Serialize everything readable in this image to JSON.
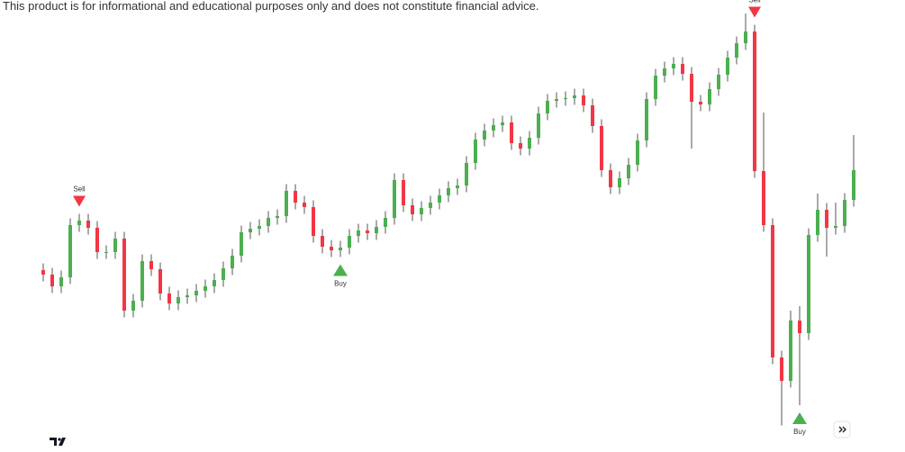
{
  "disclaimer": "This product is for informational and educational purposes only and does not constitute financial advice.",
  "chart_data": {
    "type": "candlestick",
    "ylim": [
      0,
      100
    ],
    "up_color": "#4caf50",
    "down_color": "#f23645",
    "wick_color": "#555555",
    "open": [
      40,
      39,
      36.4,
      38.4,
      50,
      51,
      49.4,
      44,
      44,
      47,
      31,
      33.2,
      42,
      40.2,
      34.8,
      32.6,
      34,
      34.4,
      35.4,
      36.4,
      37.8,
      40.4,
      43.2,
      48.4,
      49.2,
      49.8,
      51.6,
      52,
      57.6,
      55,
      54,
      47.6,
      45.2,
      44.4,
      45,
      47.6,
      48.8,
      48.2,
      49.6,
      51.6,
      60,
      54.4,
      52.4,
      53.8,
      55,
      56.6,
      58.2,
      58.8,
      63.8,
      69,
      71,
      72.2,
      72.8,
      68.2,
      67,
      69.4,
      74.8,
      77.6,
      78,
      78.2,
      78.8,
      76.6,
      72,
      62.2,
      58.4,
      60.4,
      63.4,
      68.8,
      78,
      83.2,
      84.8,
      85.8,
      83.6,
      77.4,
      76.8,
      80.2,
      83.4,
      87.2,
      90.4,
      93,
      62,
      50,
      20.6,
      15.4,
      28.8,
      26,
      47.8,
      53.4,
      49.4,
      49.8,
      55.6
    ],
    "high": [
      41.5,
      40.5,
      39.9,
      51.5,
      52.5,
      52.5,
      50.9,
      45.5,
      48.5,
      48.5,
      34.7,
      43.5,
      43.5,
      41.7,
      36.3,
      35.5,
      35.9,
      36.9,
      37.9,
      39.3,
      41.9,
      44.7,
      49.9,
      50.7,
      51.3,
      53.1,
      53.5,
      59.1,
      59.1,
      56.5,
      55.5,
      49.1,
      46.7,
      46.5,
      49.1,
      50.3,
      50.3,
      51.1,
      53.1,
      61.5,
      61.5,
      55.9,
      55.3,
      56.5,
      58.1,
      59.7,
      60.3,
      65.3,
      70.5,
      72.5,
      73.7,
      74.3,
      74.3,
      69.7,
      70.9,
      76.3,
      79.1,
      79.5,
      79.7,
      80.3,
      80.3,
      78.1,
      73.5,
      63.7,
      61.9,
      64.9,
      70.3,
      79.5,
      84.7,
      86.3,
      87.3,
      87.3,
      85.1,
      78.9,
      81.7,
      84.9,
      88.7,
      91.9,
      97,
      94.5,
      75,
      51.5,
      22.1,
      31,
      32,
      49.3,
      57,
      54.9,
      55,
      57.1,
      70
    ],
    "low": [
      37.5,
      34.9,
      34.9,
      36.9,
      48.5,
      47.9,
      42.5,
      42.5,
      42.5,
      29.5,
      29.5,
      31.7,
      38.7,
      33.3,
      31.1,
      31.1,
      32.5,
      32.9,
      33.9,
      34.9,
      36.3,
      38.9,
      41.7,
      46.9,
      47.7,
      48.3,
      50.1,
      50.5,
      53.5,
      52.5,
      46.1,
      43.7,
      42.9,
      42.9,
      43.5,
      46.1,
      46.7,
      46.7,
      48.1,
      50.1,
      52.9,
      50.9,
      50.9,
      52.3,
      53.5,
      55.1,
      56.7,
      57.3,
      62.3,
      67.5,
      69.5,
      70.7,
      66.7,
      65.5,
      65.5,
      67.9,
      73.3,
      76.1,
      76.5,
      76.7,
      75.1,
      70.5,
      60.7,
      56.9,
      56.9,
      58.9,
      61.9,
      67.3,
      76.5,
      81.7,
      83.3,
      82.1,
      67,
      75.3,
      75.3,
      78.7,
      81.9,
      85.7,
      88.9,
      60.5,
      48.5,
      19.1,
      5.5,
      13.9,
      10,
      24.5,
      46.3,
      43,
      47.9,
      48.3,
      54.1
    ],
    "close": [
      39,
      36.4,
      38.4,
      50,
      51,
      49.4,
      44,
      44,
      47,
      31,
      33.2,
      42,
      40.2,
      34.8,
      32.6,
      34,
      34.4,
      35.4,
      36.4,
      37.8,
      40.4,
      43.2,
      48.4,
      49.2,
      49.8,
      51.6,
      52,
      57.6,
      55,
      54,
      47.6,
      45.2,
      44.4,
      45,
      47.6,
      48.8,
      48.2,
      49.6,
      51.6,
      60,
      54.4,
      52.4,
      53.8,
      55,
      56.6,
      58.2,
      58.8,
      63.8,
      69,
      71,
      72.2,
      72.8,
      68.2,
      67,
      69.4,
      74.8,
      77.6,
      78,
      78.2,
      78.8,
      76.6,
      72,
      62.2,
      58.4,
      60.4,
      63.4,
      68.8,
      78,
      83.2,
      84.8,
      85.8,
      83.6,
      77.4,
      76.8,
      80.2,
      83.4,
      87.2,
      90.4,
      93,
      62,
      50,
      20.6,
      15.4,
      28.8,
      26,
      47.8,
      53.4,
      49.4,
      49.8,
      55.6,
      62.2
    ],
    "signals": [
      {
        "index": 4,
        "side": "sell",
        "label": "Sell",
        "color": "#f23645"
      },
      {
        "index": 33,
        "side": "buy",
        "label": "Buy",
        "color": "#4caf50"
      },
      {
        "index": 79,
        "side": "sell",
        "label": "Sell",
        "color": "#f23645"
      },
      {
        "index": 84,
        "side": "buy",
        "label": "Buy",
        "color": "#4caf50"
      }
    ]
  }
}
